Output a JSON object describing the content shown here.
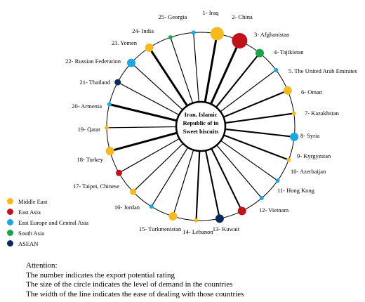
{
  "center": {
    "lines": [
      "Iran, Islamic",
      "Republic of in",
      "Sweet biscuits"
    ]
  },
  "regions": {
    "me": {
      "label": "Middle East",
      "color": "#F5B921"
    },
    "ea": {
      "label": "East Asia",
      "color": "#C1121C"
    },
    "eca": {
      "label": "East Europe and Central Asia",
      "color": "#1BA7E0"
    },
    "sa": {
      "label": "South Asia",
      "color": "#1FA34A"
    },
    "as": {
      "label": "ASEAN",
      "color": "#0B2A5B"
    }
  },
  "legend": [
    {
      "label": "Middle East",
      "color": "#F5B921"
    },
    {
      "label": "East Asia",
      "color": "#C1121C"
    },
    {
      "label": "East Europe and Central Asia",
      "color": "#1BA7E0"
    },
    {
      "label": "South Asia",
      "color": "#1FA34A"
    },
    {
      "label": "ASEAN",
      "color": "#0B2A5B"
    }
  ],
  "countries": [
    {
      "rank": 1,
      "label": "1- Iraq",
      "region": "me",
      "demand": 5,
      "ease": 3
    },
    {
      "rank": 2,
      "label": "2- China",
      "region": "ea",
      "demand": 6,
      "ease": 3
    },
    {
      "rank": 3,
      "label": "3- Afghanistan",
      "region": "sa",
      "demand": 3,
      "ease": 2
    },
    {
      "rank": 4,
      "label": "4- Tajikistan",
      "region": "eca",
      "demand": 1,
      "ease": 1
    },
    {
      "rank": 5,
      "label": "5. The United Arab Emirates",
      "region": "me",
      "demand": 3,
      "ease": 2
    },
    {
      "rank": 6,
      "label": "6- Oman",
      "region": "me",
      "demand": 1,
      "ease": 2
    },
    {
      "rank": 7,
      "label": "7- Kazakhstan",
      "region": "eca",
      "demand": 3,
      "ease": 2
    },
    {
      "rank": 8,
      "label": "8- Syria",
      "region": "me",
      "demand": 1,
      "ease": 2
    },
    {
      "rank": 9,
      "label": "9- Kyrgyzstan",
      "region": "eca",
      "demand": 1,
      "ease": 1
    },
    {
      "rank": 10,
      "label": "10- Azerbaijan",
      "region": "eca",
      "demand": 1,
      "ease": 1
    },
    {
      "rank": 11,
      "label": "11- Hong Kong",
      "region": "ea",
      "demand": 3,
      "ease": 2
    },
    {
      "rank": 12,
      "label": "12- Vietnam",
      "region": "as",
      "demand": 3,
      "ease": 2
    },
    {
      "rank": 13,
      "label": "13- Kuwait",
      "region": "me",
      "demand": 1,
      "ease": 2
    },
    {
      "rank": 14,
      "label": "14- Lebanon",
      "region": "me",
      "demand": 3,
      "ease": 1
    },
    {
      "rank": 15,
      "label": "15- Turkmenistan",
      "region": "eca",
      "demand": 1,
      "ease": 1
    },
    {
      "rank": 16,
      "label": "16- Jordan",
      "region": "me",
      "demand": 2,
      "ease": 1
    },
    {
      "rank": 17,
      "label": "17- Taipei, Chinese",
      "region": "ea",
      "demand": 2,
      "ease": 1
    },
    {
      "rank": 18,
      "label": "18- Turkey",
      "region": "me",
      "demand": 3,
      "ease": 3
    },
    {
      "rank": 19,
      "label": "19- Qatar",
      "region": "me",
      "demand": 1,
      "ease": 1
    },
    {
      "rank": 20,
      "label": "20- Armenia",
      "region": "eca",
      "demand": 1,
      "ease": 3
    },
    {
      "rank": 21,
      "label": "21- Thailand",
      "region": "as",
      "demand": 2,
      "ease": 1
    },
    {
      "rank": 22,
      "label": "22- Russian Federation",
      "region": "eca",
      "demand": 3,
      "ease": 1
    },
    {
      "rank": 23,
      "label": "23. Yemen",
      "region": "me",
      "demand": 3,
      "ease": 3
    },
    {
      "rank": 24,
      "label": "24- India",
      "region": "sa",
      "demand": 1,
      "ease": 1
    },
    {
      "rank": 25,
      "label": "25- Georgia",
      "region": "eca",
      "demand": 1,
      "ease": 1
    }
  ],
  "notes": {
    "title": "Attention:",
    "line1": "The number indicates the export potential rating",
    "line2": "The size of the circle indicates the level of demand in the countries",
    "line3": "The width of the line indicates the ease of dealing with those countries"
  }
}
